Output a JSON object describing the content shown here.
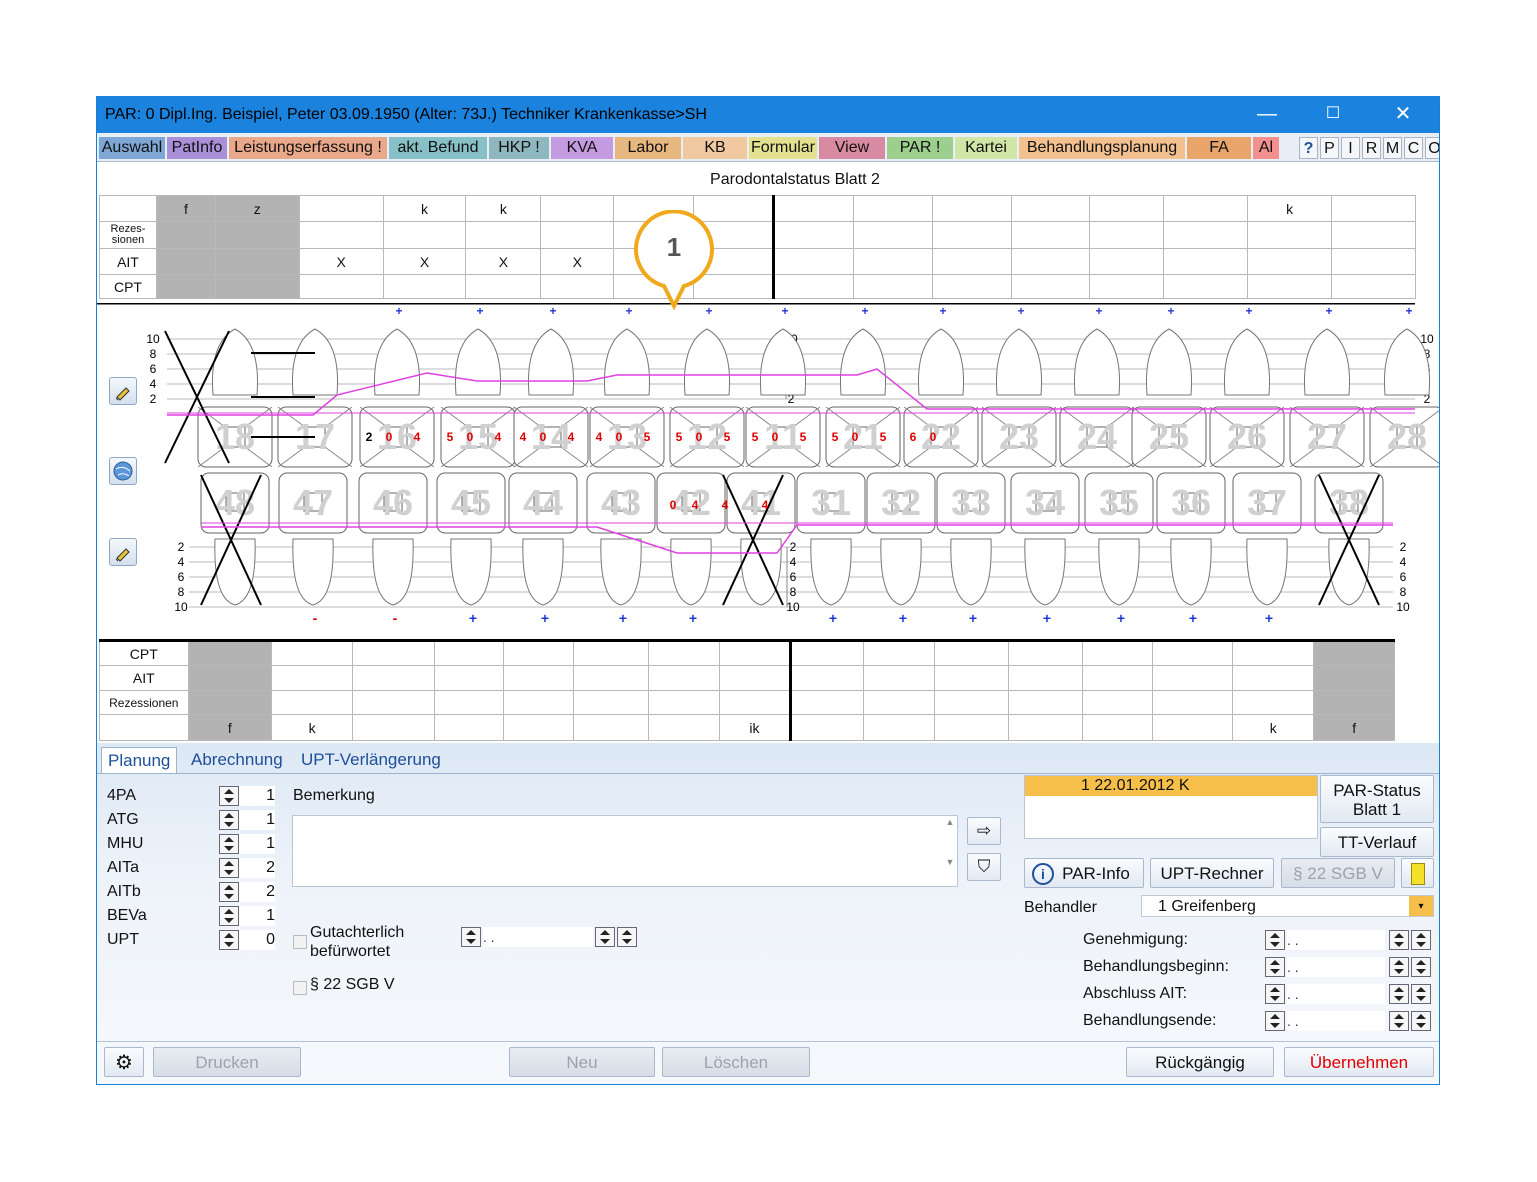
{
  "window": {
    "title": "PAR: 0  Dipl.Ing. Beispiel, Peter  03.09.1950 (Alter: 73J.)  Techniker Krankenkasse>SH",
    "controls": {
      "minimize": "—",
      "maximize": "☐",
      "close": "✕"
    }
  },
  "tabs": [
    {
      "label": "Auswahl",
      "color": "#7fa7d6"
    },
    {
      "label": "PatInfo",
      "color": "#a98ed8"
    },
    {
      "label": "Leistungserfassung !",
      "color": "#e9a889"
    },
    {
      "label": "akt. Befund",
      "color": "#88c0c7"
    },
    {
      "label": "HKP !",
      "color": "#8fb7c0"
    },
    {
      "label": "KVA",
      "color": "#c49be0"
    },
    {
      "label": "Labor",
      "color": "#e6b77e"
    },
    {
      "label": "KB",
      "color": "#f1c9a1"
    },
    {
      "label": "Formular",
      "color": "#e3e18f"
    },
    {
      "label": "View",
      "color": "#d98aa3"
    },
    {
      "label": "PAR !",
      "color": "#9ccf8d"
    },
    {
      "label": "Kartei",
      "color": "#d0e6a6"
    },
    {
      "label": "Behandlungsplanung",
      "color": "#f3c08f"
    },
    {
      "label": "FA",
      "color": "#e9a56a"
    },
    {
      "label": "Al",
      "color": "#f29090"
    }
  ],
  "toolbar_buttons": [
    "?",
    "P",
    "I",
    "R",
    "M",
    "C",
    "O"
  ],
  "sheet_title": "Parodontalstatus Blatt 2",
  "upper_table": {
    "row_labels": [
      "",
      "Rezes-\nsionen",
      "AIT",
      "CPT"
    ],
    "top_row": [
      "f",
      "z",
      "",
      "k",
      "k",
      "",
      "",
      "",
      "",
      "",
      "",
      "",
      "",
      "",
      "k",
      ""
    ],
    "ait_row": [
      "",
      "",
      "X",
      "X",
      "X",
      "X",
      "",
      "",
      "",
      "",
      "",
      "",
      "",
      "",
      "",
      ""
    ]
  },
  "lower_table": {
    "row_labels": [
      "CPT",
      "AIT",
      "Rezessionen",
      ""
    ],
    "bottom_row": [
      "f",
      "k",
      "",
      "",
      "",
      "",
      "",
      "ik",
      "",
      "",
      "",
      "",
      "",
      "",
      "k",
      "f"
    ]
  },
  "callout": {
    "label": "1",
    "color": "#f0a81c"
  },
  "chart": {
    "upper_teeth": [
      "18",
      "17",
      "16",
      "15",
      "14",
      "13",
      "12",
      "11",
      "21",
      "22",
      "23",
      "24",
      "25",
      "26",
      "27",
      "28"
    ],
    "lower_teeth": [
      "48",
      "47",
      "46",
      "45",
      "44",
      "43",
      "42",
      "41",
      "31",
      "32",
      "33",
      "34",
      "35",
      "36",
      "37",
      "38"
    ],
    "scale_left": [
      "10",
      "8",
      "6",
      "4",
      "2"
    ],
    "scale_lower": [
      "2",
      "4",
      "6",
      "8",
      "10"
    ],
    "upper_marks": [
      "",
      "",
      "+",
      "+",
      "+",
      "+",
      "+",
      "+",
      "+",
      "+",
      "+",
      "+",
      "+",
      "+",
      "+",
      "+"
    ],
    "lower_marks": [
      "",
      "-",
      "-",
      "+",
      "+",
      "+",
      "+",
      "",
      "+",
      "+",
      "+",
      "+",
      "+",
      "+",
      "+",
      ""
    ],
    "upper_values": [
      [
        "2",
        "0",
        "4"
      ],
      [
        "5",
        "0",
        "4"
      ],
      [
        "4",
        "0",
        "4"
      ],
      [
        "4",
        "0",
        "5"
      ],
      [
        "5",
        "0",
        "5"
      ],
      [
        "5",
        "0",
        "5"
      ],
      [
        "5",
        "0",
        "5"
      ],
      [
        "6",
        "0",
        ""
      ]
    ],
    "line_color": "#e040e0",
    "value_color": "#e00000",
    "mark_plus_color": "#1f3bd6",
    "mark_minus_color": "#e00000"
  },
  "bottom_tabs": [
    "Planung",
    "Abrechnung",
    "UPT-Verlängerung"
  ],
  "planning": [
    {
      "label": "4PA",
      "value": "1"
    },
    {
      "label": "ATG",
      "value": "1"
    },
    {
      "label": "MHU",
      "value": "1"
    },
    {
      "label": "AITa",
      "value": "2"
    },
    {
      "label": "AITb",
      "value": "2"
    },
    {
      "label": "BEVa",
      "value": "1"
    },
    {
      "label": "UPT",
      "value": "0"
    }
  ],
  "remark_label": "Bemerkung",
  "remark_value": "",
  "checkboxes": {
    "gutachter": "Gutachterlich\nbefürwortet",
    "sgb": "§ 22 SGB V"
  },
  "date_placeholder": " .   .",
  "status_list": [
    "1 22.01.2012  K"
  ],
  "right_buttons": {
    "par_status": "PAR-Status\nBlatt 1",
    "tt_verlauf": "TT-Verlauf",
    "par_info": "PAR-Info",
    "upt_rechner": "UPT-Rechner",
    "sgb_button": "§ 22 SGB V"
  },
  "behandler": {
    "label": "Behandler",
    "value": "1 Greifenberg"
  },
  "dates": [
    {
      "label": "Genehmigung:",
      "value": " .   ."
    },
    {
      "label": "Behandlungsbeginn:",
      "value": " .   ."
    },
    {
      "label": "Abschluss AIT:",
      "value": " .   ."
    },
    {
      "label": "Behandlungsende:",
      "value": " .   ."
    }
  ],
  "footer": {
    "print": "Drucken",
    "new": "Neu",
    "delete": "Löschen",
    "undo": "Rückgängig",
    "apply": "Übernehmen"
  }
}
